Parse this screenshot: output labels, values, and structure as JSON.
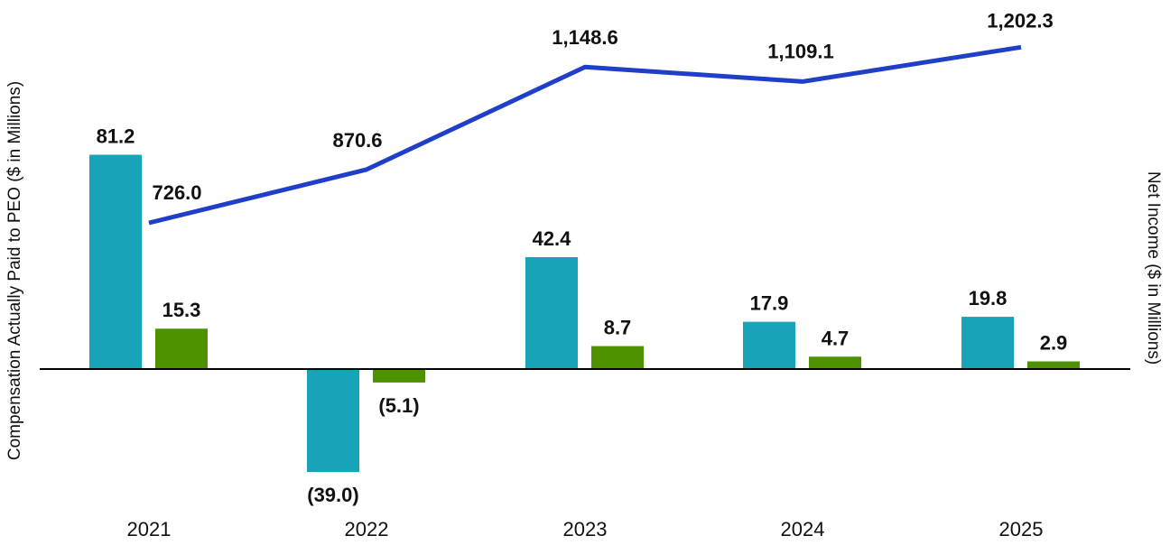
{
  "chart_data": {
    "type": "bar+line",
    "categories": [
      "2021",
      "2022",
      "2023",
      "2024",
      "2025"
    ],
    "ylabel_left": "Compensation Actually Paid to PEO ($ in Millions)",
    "ylabel_right": "Net Income ($ in Millions)",
    "colors": {
      "cap_bar": "#17a3b8",
      "tsr_bar": "#4f9200",
      "line": "#1f3fc9",
      "axis": "#000000"
    },
    "series": [
      {
        "name": "Compensation Actually Paid to PEO",
        "kind": "bar",
        "axis": "left",
        "values": [
          81.2,
          -39.0,
          42.4,
          17.9,
          19.8
        ],
        "labels": [
          "81.2",
          "(39.0)",
          "42.4",
          "17.9",
          "19.8"
        ]
      },
      {
        "name": "Secondary bar series",
        "kind": "bar",
        "axis": "left",
        "values": [
          15.3,
          -5.1,
          8.7,
          4.7,
          2.9
        ],
        "labels": [
          "15.3",
          "(5.1)",
          "8.7",
          "4.7",
          "2.9"
        ]
      },
      {
        "name": "Net Income",
        "kind": "line",
        "axis": "right",
        "values": [
          726.0,
          870.6,
          1148.6,
          1109.1,
          1202.3
        ],
        "labels": [
          "726.0",
          "870.6",
          "1,148.6",
          "1,109.1",
          "1,202.3"
        ]
      }
    ]
  }
}
